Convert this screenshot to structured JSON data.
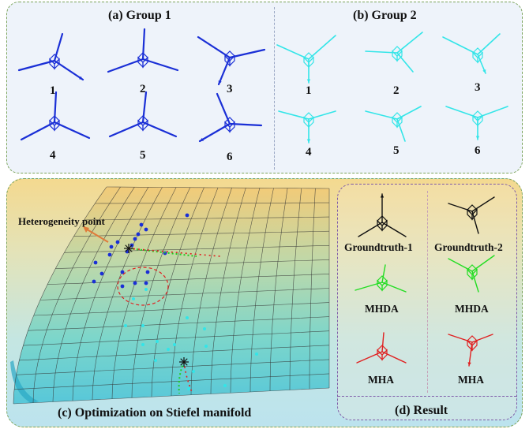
{
  "group1": {
    "title": "(a) Group 1",
    "color": "#1a2fd6",
    "labels": [
      "1",
      "2",
      "3",
      "4",
      "5",
      "6"
    ]
  },
  "group2": {
    "title": "(b) Group 2",
    "color": "#33e5e8",
    "labels": [
      "1",
      "2",
      "3",
      "4",
      "5",
      "6"
    ]
  },
  "optimization": {
    "title": "(c) Optimization on Stiefel manifold",
    "annotation": "Heterogeneity point"
  },
  "result": {
    "title": "(d) Result",
    "left_labels": [
      "Groundtruth-1",
      "MHDA",
      "MHA"
    ],
    "right_labels": [
      "Groundtruth-2",
      "MHDA",
      "MHA"
    ],
    "colors": {
      "groundtruth": "#111111",
      "mhda": "#22dd22",
      "mha": "#e02020"
    }
  }
}
